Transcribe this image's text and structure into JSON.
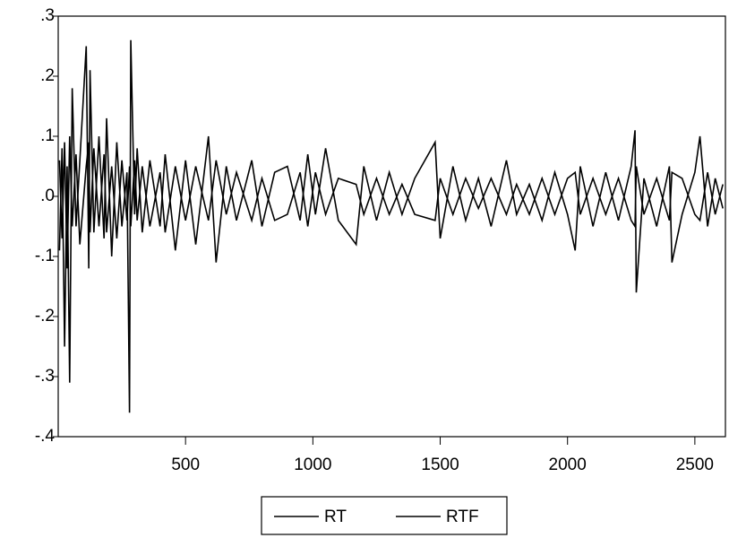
{
  "chart_data": {
    "type": "line",
    "x": [
      5,
      15,
      25,
      35,
      45,
      55,
      70,
      85,
      110,
      120,
      125,
      140,
      160,
      180,
      190,
      210,
      230,
      250,
      270,
      280,
      285,
      300,
      310,
      330,
      360,
      400,
      420,
      460,
      500,
      540,
      590,
      620,
      660,
      700,
      760,
      800,
      850,
      900,
      950,
      980,
      1010,
      1050,
      1100,
      1170,
      1200,
      1250,
      1300,
      1350,
      1400,
      1480,
      1500,
      1550,
      1600,
      1650,
      1700,
      1760,
      1800,
      1850,
      1900,
      1950,
      2000,
      2030,
      2050,
      2100,
      2150,
      2200,
      2250,
      2265,
      2270,
      2300,
      2350,
      2400,
      2410,
      2450,
      2500,
      2520,
      2550,
      2580,
      2610
    ],
    "series": [
      {
        "name": "RT",
        "color": "#000000",
        "values": [
          -0.09,
          0.08,
          -0.25,
          0.05,
          -0.31,
          0.18,
          -0.05,
          0.06,
          0.25,
          -0.12,
          0.21,
          -0.06,
          0.1,
          -0.07,
          0.13,
          -0.1,
          0.09,
          -0.05,
          0.04,
          -0.36,
          0.26,
          -0.03,
          0.08,
          -0.06,
          0.06,
          -0.05,
          0.07,
          -0.09,
          0.06,
          -0.08,
          0.1,
          -0.11,
          0.05,
          -0.04,
          0.06,
          -0.05,
          0.04,
          0.05,
          -0.04,
          0.07,
          -0.03,
          0.08,
          -0.04,
          -0.08,
          0.05,
          -0.04,
          0.04,
          -0.03,
          0.03,
          0.09,
          -0.07,
          0.05,
          -0.04,
          0.03,
          -0.05,
          0.06,
          -0.03,
          0.02,
          -0.04,
          0.04,
          -0.03,
          -0.09,
          0.05,
          -0.05,
          0.04,
          -0.04,
          0.05,
          0.11,
          -0.16,
          0.03,
          -0.05,
          0.05,
          -0.11,
          -0.03,
          0.04,
          0.1,
          -0.05,
          0.03,
          -0.02
        ]
      },
      {
        "name": "RTF",
        "color": "#000000",
        "values": [
          0.06,
          -0.07,
          0.09,
          -0.12,
          0.1,
          -0.05,
          0.07,
          -0.08,
          0.05,
          0.09,
          -0.06,
          0.08,
          -0.05,
          0.07,
          -0.06,
          0.05,
          -0.07,
          0.06,
          -0.04,
          0.05,
          -0.05,
          0.06,
          -0.04,
          0.05,
          -0.05,
          0.04,
          -0.06,
          0.05,
          -0.04,
          0.05,
          -0.04,
          0.06,
          -0.03,
          0.04,
          -0.04,
          0.03,
          -0.04,
          -0.03,
          0.04,
          -0.05,
          0.04,
          -0.03,
          0.03,
          0.02,
          -0.03,
          0.03,
          -0.03,
          0.02,
          -0.03,
          -0.04,
          0.03,
          -0.03,
          0.03,
          -0.02,
          0.03,
          -0.03,
          0.02,
          -0.03,
          0.03,
          -0.03,
          0.03,
          0.04,
          -0.03,
          0.03,
          -0.03,
          0.03,
          -0.04,
          -0.05,
          0.05,
          -0.03,
          0.03,
          -0.04,
          0.04,
          0.03,
          -0.03,
          -0.04,
          0.04,
          -0.03,
          0.02
        ]
      }
    ],
    "xlim": [
      0,
      2620
    ],
    "ylim": [
      -0.4,
      0.3
    ],
    "xticks": [
      500,
      1000,
      1500,
      2000,
      2500
    ],
    "yticks": [
      {
        "value": 0.3,
        "label": ".3"
      },
      {
        "value": 0.2,
        "label": ".2"
      },
      {
        "value": 0.1,
        "label": ".1"
      },
      {
        "value": 0,
        "label": ".0"
      },
      {
        "value": -0.1,
        "label": "-.1"
      },
      {
        "value": -0.2,
        "label": "-.2"
      },
      {
        "value": -0.3,
        "label": "-.3"
      },
      {
        "value": -0.4,
        "label": "-.4"
      }
    ],
    "legend": "bottom"
  }
}
